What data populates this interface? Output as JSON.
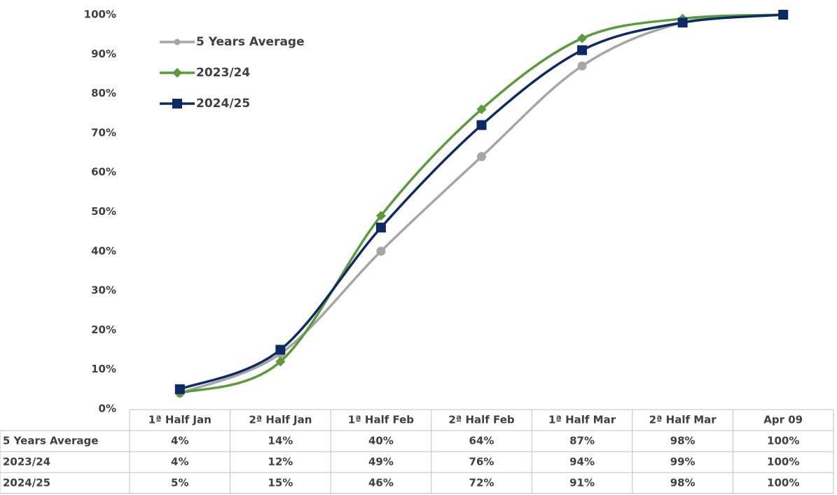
{
  "chart_data": {
    "type": "line",
    "categories": [
      "1ª Half Jan",
      "2ª Half Jan",
      "1ª Half Feb",
      "2ª Half Feb",
      "1ª Half Mar",
      "2ª Half Mar",
      "Apr 09"
    ],
    "series": [
      {
        "name": "5 Years Average",
        "color": "#a6a6a6",
        "marker": "circle",
        "values": [
          4,
          14,
          40,
          64,
          87,
          98,
          100
        ],
        "value_labels": [
          "4%",
          "14%",
          "40%",
          "64%",
          "87%",
          "98%",
          "100%"
        ]
      },
      {
        "name": "2023/24",
        "color": "#5b9b3c",
        "marker": "diamond",
        "values": [
          4,
          12,
          49,
          76,
          94,
          99,
          100
        ],
        "value_labels": [
          "4%",
          "12%",
          "49%",
          "76%",
          "94%",
          "99%",
          "100%"
        ]
      },
      {
        "name": "2024/25",
        "color": "#0e2a64",
        "marker": "square",
        "values": [
          5,
          15,
          46,
          72,
          91,
          98,
          100
        ],
        "value_labels": [
          "5%",
          "15%",
          "46%",
          "72%",
          "91%",
          "98%",
          "100%"
        ]
      }
    ],
    "ylim": [
      0,
      100
    ],
    "yticks": [
      {
        "value": 0,
        "label": "0%"
      },
      {
        "value": 10,
        "label": "10%"
      },
      {
        "value": 20,
        "label": "20%"
      },
      {
        "value": 30,
        "label": "30%"
      },
      {
        "value": 40,
        "label": "40%"
      },
      {
        "value": 50,
        "label": "50%"
      },
      {
        "value": 60,
        "label": "60%"
      },
      {
        "value": 70,
        "label": "70%"
      },
      {
        "value": 80,
        "label": "80%"
      },
      {
        "value": 90,
        "label": "90%"
      },
      {
        "value": 100,
        "label": "100%"
      }
    ],
    "grid": false,
    "smooth": true,
    "legend": "upper left",
    "data_table": true
  }
}
